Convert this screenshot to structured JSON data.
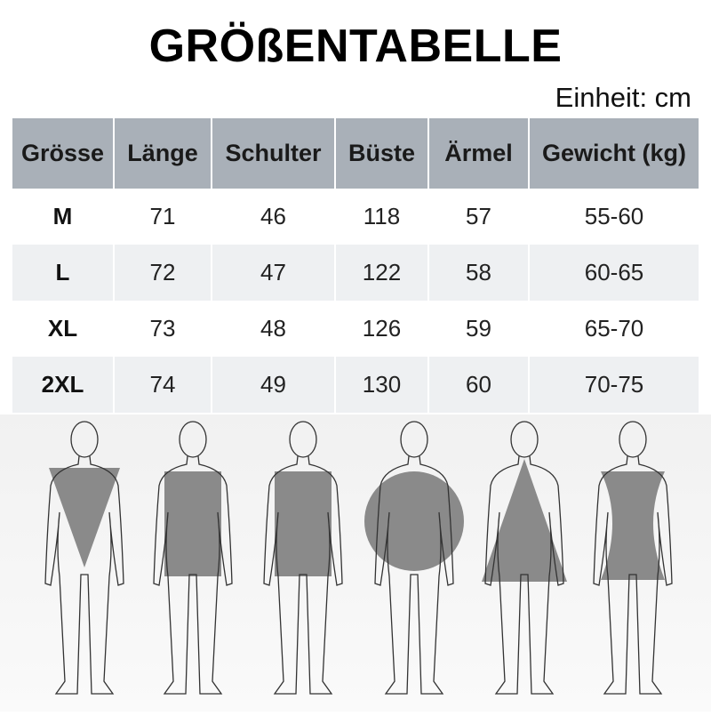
{
  "title": "GRÖßENTABELLE",
  "unit_label": "Einheit: cm",
  "table": {
    "headers": [
      "Grösse",
      "Länge",
      "Schulter",
      "Büste",
      "Ärmel",
      "Gewicht (kg)"
    ],
    "rows": [
      [
        "M",
        "71",
        "46",
        "118",
        "57",
        "55-60"
      ],
      [
        "L",
        "72",
        "47",
        "122",
        "58",
        "60-65"
      ],
      [
        "XL",
        "73",
        "48",
        "126",
        "59",
        "65-70"
      ],
      [
        "2XL",
        "74",
        "49",
        "130",
        "60",
        "70-75"
      ]
    ]
  },
  "body_shapes": [
    "inverted-triangle",
    "rectangle",
    "rectangle",
    "round",
    "triangle",
    "hourglass"
  ],
  "colors": {
    "header": "#a9b0b8",
    "stripe": "#eef0f2",
    "shape": "#8a8a8a"
  }
}
